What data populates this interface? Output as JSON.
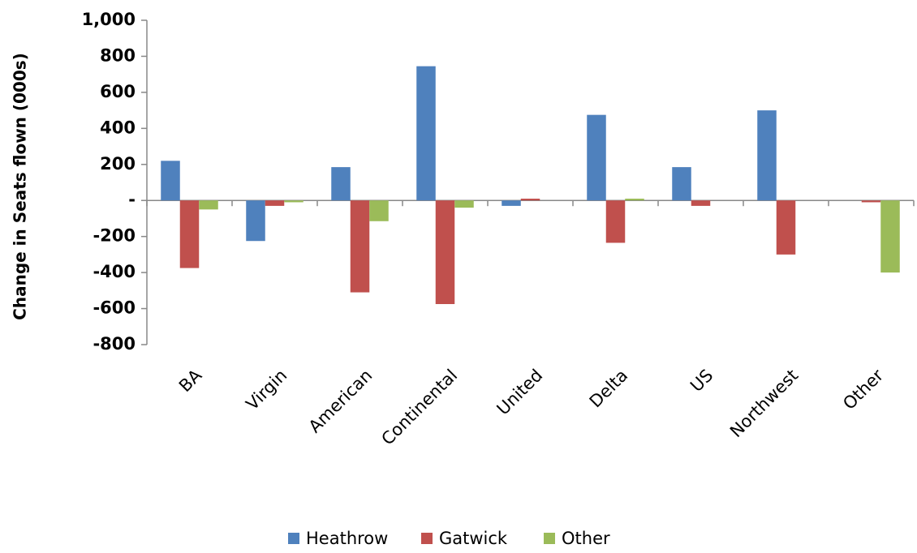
{
  "chart_data": {
    "type": "bar",
    "y_label": "Change in Seats flown (000s)",
    "categories": [
      "BA",
      "Virgin",
      "American",
      "Continental",
      "United",
      "Delta",
      "US",
      "Northwest",
      "Other"
    ],
    "series": [
      {
        "name": "Heathrow",
        "color": "#4f81bd",
        "values": [
          220,
          -225,
          185,
          745,
          -30,
          475,
          185,
          500,
          0
        ]
      },
      {
        "name": "Gatwick",
        "color": "#c0504d",
        "values": [
          -375,
          -30,
          -510,
          -575,
          10,
          -235,
          -30,
          -300,
          -10
        ]
      },
      {
        "name": "Other",
        "color": "#9bbb59",
        "values": [
          -50,
          -10,
          -115,
          -40,
          0,
          10,
          0,
          0,
          -400
        ]
      }
    ],
    "ylim": [
      -800,
      1000
    ],
    "yticks": [
      -800,
      -600,
      -400,
      -200,
      {
        "value": 0,
        "label": "-"
      },
      200,
      400,
      600,
      800,
      {
        "value": 1000,
        "label": "1,000"
      }
    ],
    "grid": false,
    "legend": "bottom"
  }
}
